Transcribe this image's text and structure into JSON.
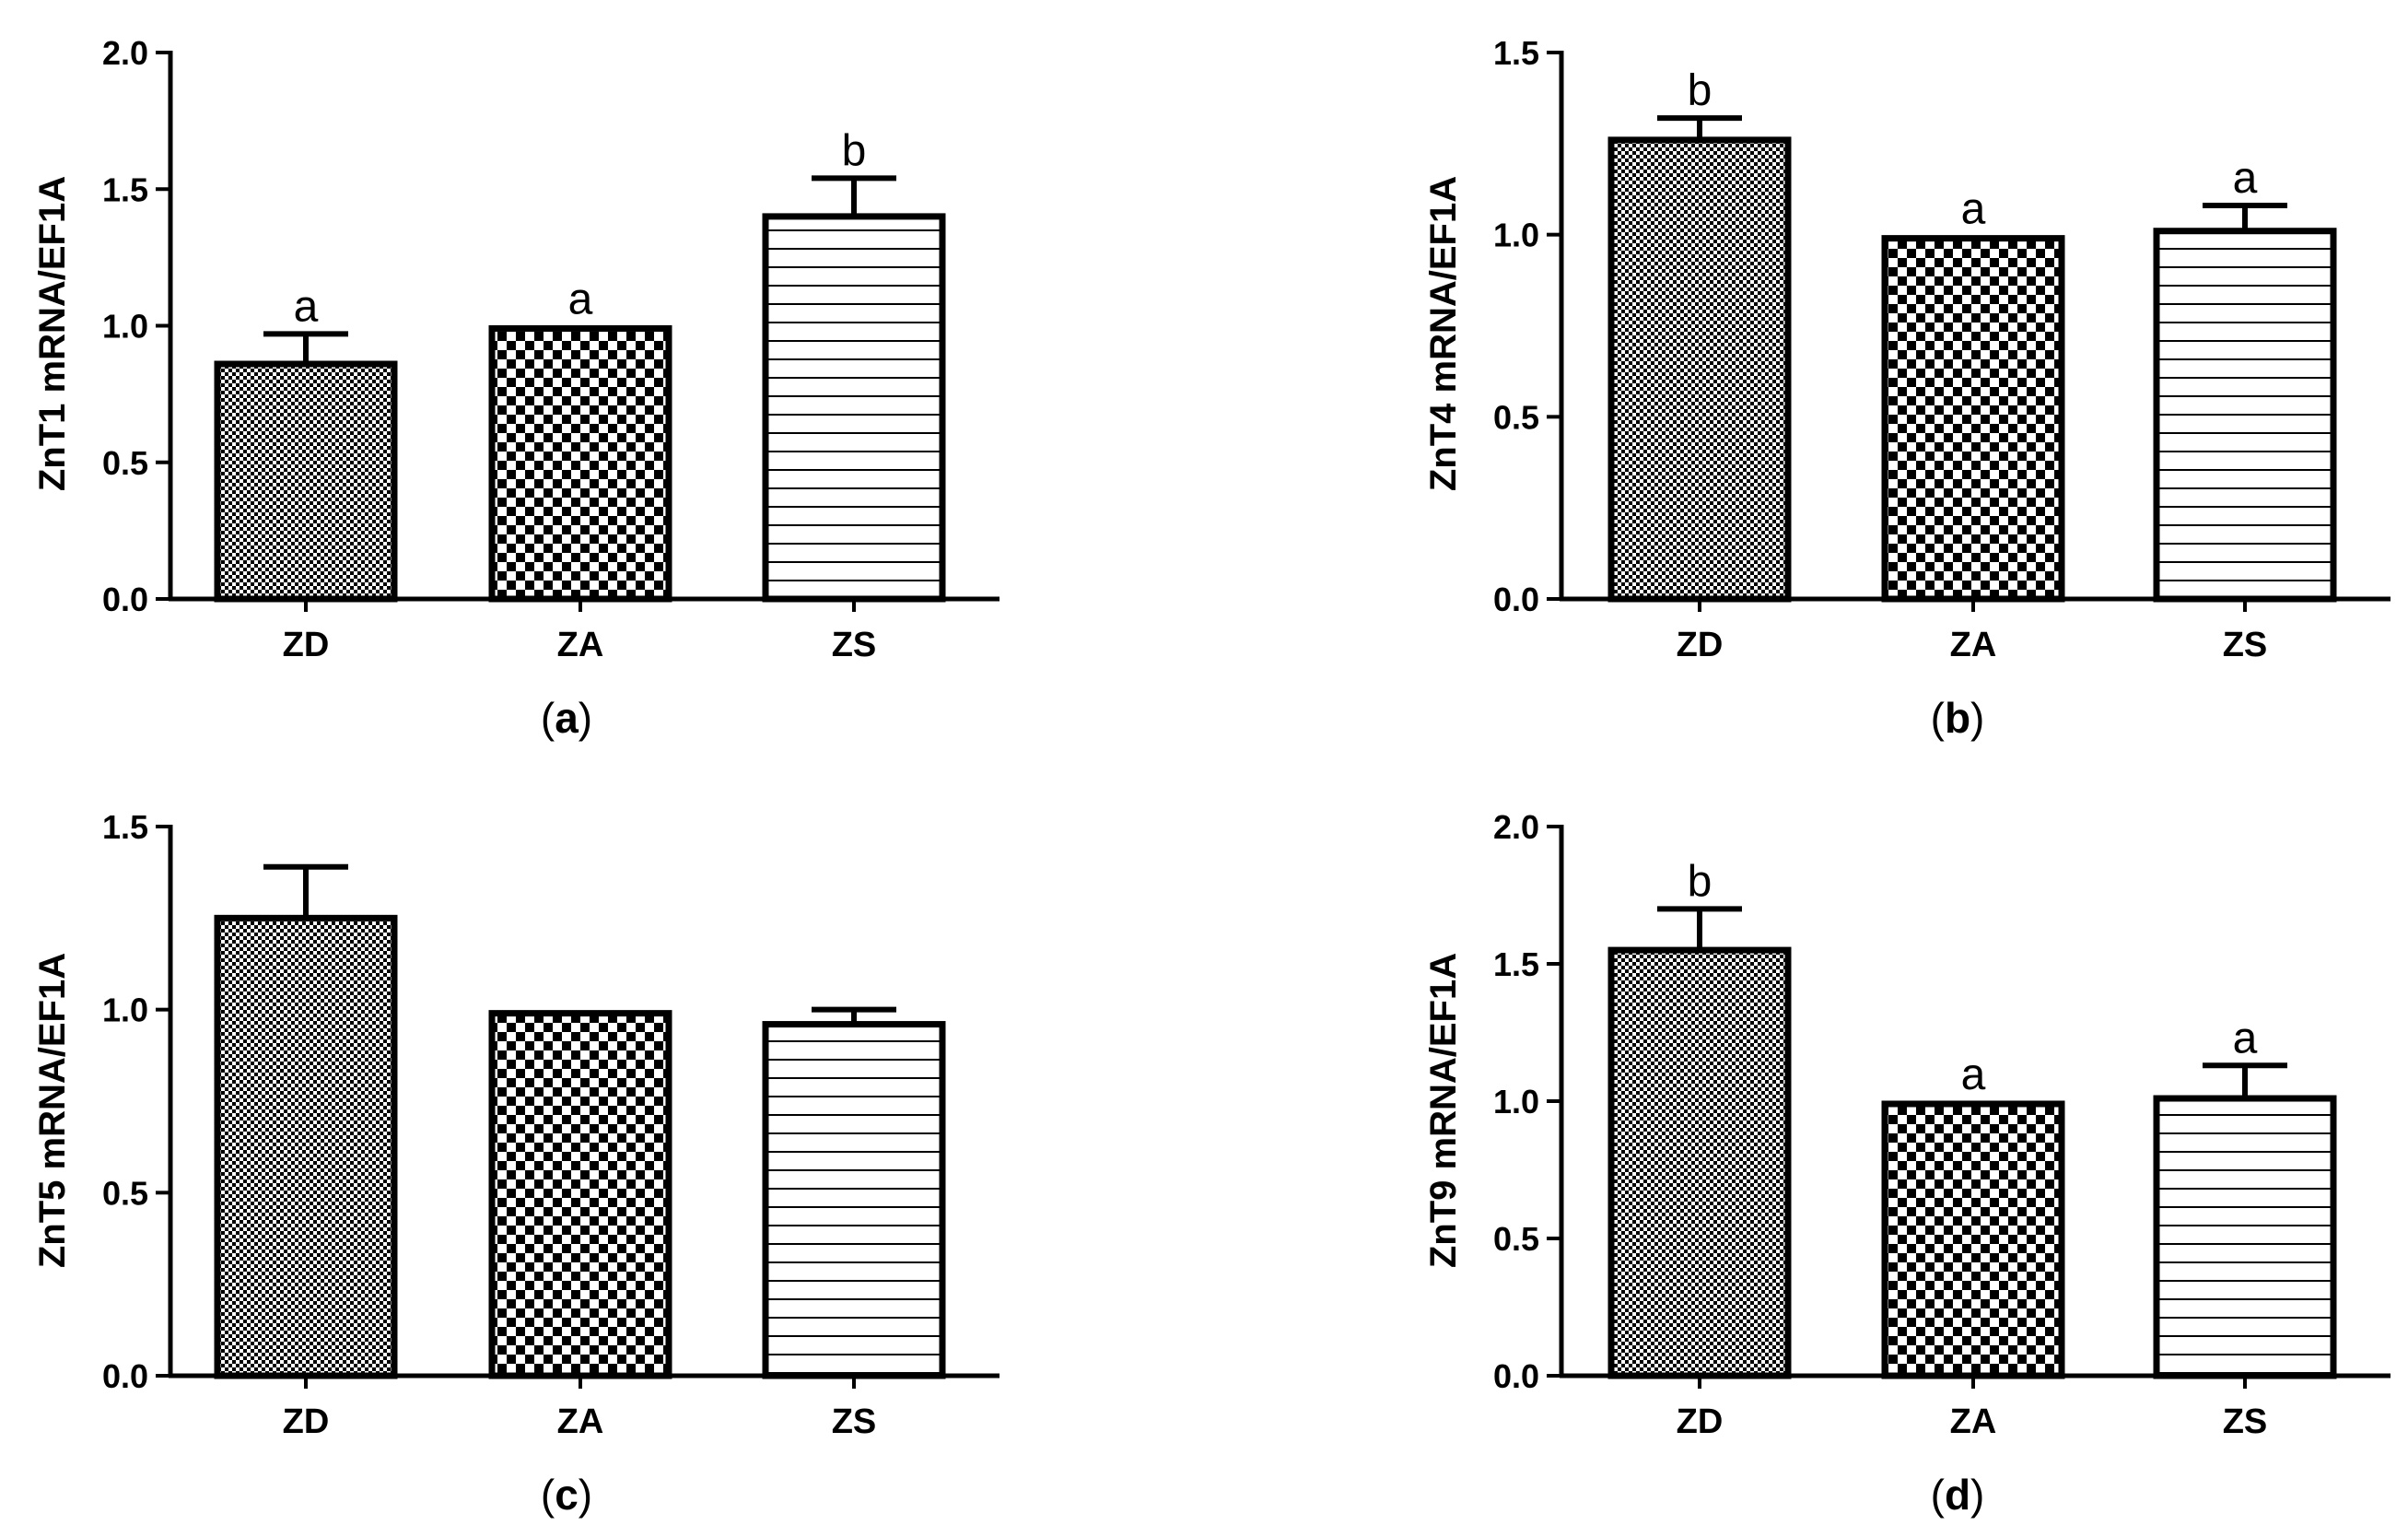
{
  "colors": {
    "ink": "#000000",
    "background": "#ffffff"
  },
  "chart_data": [
    {
      "type": "bar",
      "panel": "a",
      "ylabel": "ZnT1 mRNA/EF1A",
      "xlabel": "",
      "categories": [
        "ZD",
        "ZA",
        "ZS"
      ],
      "values": [
        0.86,
        0.99,
        1.4
      ],
      "errors": [
        0.11,
        0.0,
        0.14
      ],
      "significance": [
        "a",
        "a",
        "b"
      ],
      "patterns": [
        "fine-check",
        "checker",
        "hlines"
      ],
      "ylim": [
        0,
        2.0
      ],
      "yticks": [
        "0.0",
        "0.5",
        "1.0",
        "1.5",
        "2.0"
      ]
    },
    {
      "type": "bar",
      "panel": "b",
      "ylabel": "ZnT4 mRNA/EF1A",
      "xlabel": "",
      "categories": [
        "ZD",
        "ZA",
        "ZS"
      ],
      "values": [
        1.26,
        0.99,
        1.01
      ],
      "errors": [
        0.06,
        0.0,
        0.07
      ],
      "significance": [
        "b",
        "a",
        "a"
      ],
      "patterns": [
        "fine-check",
        "checker",
        "hlines"
      ],
      "ylim": [
        0,
        1.5
      ],
      "yticks": [
        "0.0",
        "0.5",
        "1.0",
        "1.5"
      ]
    },
    {
      "type": "bar",
      "panel": "c",
      "ylabel": "ZnT5 mRNA/EF1A",
      "xlabel": "",
      "categories": [
        "ZD",
        "ZA",
        "ZS"
      ],
      "values": [
        1.25,
        0.99,
        0.96
      ],
      "errors": [
        0.14,
        0.0,
        0.04
      ],
      "significance": [
        "",
        "",
        ""
      ],
      "patterns": [
        "fine-check",
        "checker",
        "hlines"
      ],
      "ylim": [
        0,
        1.5
      ],
      "yticks": [
        "0.0",
        "0.5",
        "1.0",
        "1.5"
      ]
    },
    {
      "type": "bar",
      "panel": "d",
      "ylabel": "ZnT9 mRNA/EF1A",
      "xlabel": "",
      "categories": [
        "ZD",
        "ZA",
        "ZS"
      ],
      "values": [
        1.55,
        0.99,
        1.01
      ],
      "errors": [
        0.15,
        0.0,
        0.12
      ],
      "significance": [
        "b",
        "a",
        "a"
      ],
      "patterns": [
        "fine-check",
        "checker",
        "hlines"
      ],
      "ylim": [
        0,
        2.0
      ],
      "yticks": [
        "0.0",
        "0.5",
        "1.0",
        "1.5",
        "2.0"
      ]
    }
  ]
}
